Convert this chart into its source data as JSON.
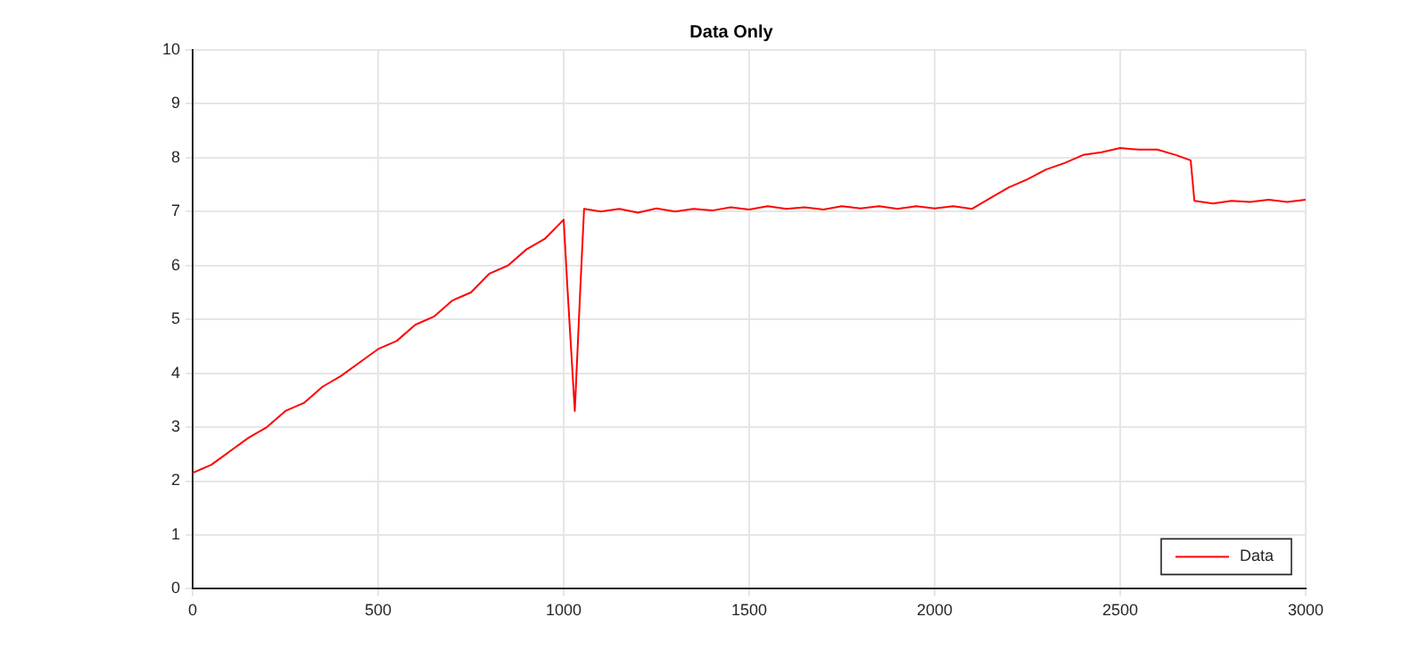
{
  "chart_data": {
    "type": "line",
    "title": "Data Only",
    "x": [
      0,
      50,
      100,
      150,
      200,
      250,
      300,
      350,
      400,
      450,
      500,
      550,
      600,
      650,
      700,
      750,
      800,
      850,
      900,
      950,
      1000,
      1010,
      1030,
      1045,
      1055,
      1100,
      1150,
      1200,
      1250,
      1300,
      1350,
      1400,
      1450,
      1500,
      1550,
      1600,
      1650,
      1700,
      1750,
      1800,
      1850,
      1900,
      1950,
      2000,
      2050,
      2100,
      2150,
      2200,
      2250,
      2300,
      2350,
      2400,
      2450,
      2500,
      2550,
      2600,
      2650,
      2690,
      2700,
      2750,
      2800,
      2850,
      2900,
      2950,
      3000
    ],
    "series": [
      {
        "name": "Data",
        "color": "#ff0000",
        "values": [
          2.15,
          2.3,
          2.55,
          2.8,
          3.0,
          3.3,
          3.45,
          3.75,
          3.95,
          4.2,
          4.45,
          4.6,
          4.9,
          5.05,
          5.35,
          5.5,
          5.85,
          6.0,
          6.3,
          6.5,
          6.85,
          5.6,
          3.3,
          5.6,
          7.05,
          7.0,
          7.05,
          6.98,
          7.06,
          7.0,
          7.05,
          7.02,
          7.08,
          7.04,
          7.1,
          7.05,
          7.08,
          7.04,
          7.1,
          7.06,
          7.1,
          7.05,
          7.1,
          7.06,
          7.1,
          7.05,
          7.25,
          7.45,
          7.6,
          7.78,
          7.9,
          8.05,
          8.1,
          8.18,
          8.15,
          8.15,
          8.05,
          7.95,
          7.2,
          7.15,
          7.2,
          7.18,
          7.22,
          7.18,
          7.22
        ]
      }
    ],
    "xlim": [
      0,
      3000
    ],
    "xticks": [
      0,
      500,
      1000,
      1500,
      2000,
      2500,
      3000
    ],
    "ylim": [
      0,
      10
    ],
    "yticks": [
      0,
      1,
      2,
      3,
      4,
      5,
      6,
      7,
      8,
      9,
      10
    ],
    "grid": true,
    "legend": "bottom right",
    "marker": "none",
    "line_style": "solid"
  }
}
